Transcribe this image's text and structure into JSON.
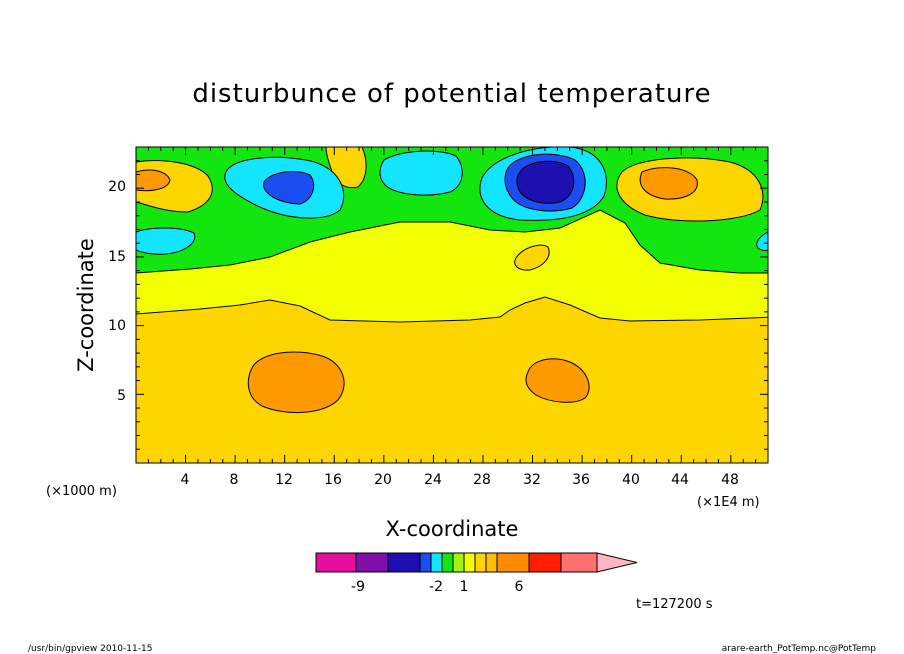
{
  "chart_data": {
    "type": "heatmap",
    "title": "disturbunce of potential temperature",
    "xlabel": "X-coordinate",
    "ylabel": "Z-coordinate",
    "x_unit_left": "(×1000 m)",
    "x_unit_right": "(×1E4 m)",
    "x_ticks": [
      "4",
      "8",
      "12",
      "16",
      "20",
      "24",
      "28",
      "32",
      "36",
      "40",
      "44",
      "48"
    ],
    "y_ticks": [
      "5",
      "10",
      "15",
      "20"
    ],
    "xlim": [
      0,
      51
    ],
    "ylim": [
      0,
      23
    ],
    "colorbar": {
      "labels": [
        "-9",
        "-2",
        "1",
        "6"
      ],
      "colors": [
        "#e60f9b",
        "#7e0fa8",
        "#1d0fb0",
        "#1b4ef0",
        "#14e5ff",
        "#13e60e",
        "#a5f30c",
        "#f1ff00",
        "#ffd500",
        "#ffbf00",
        "#ff8c00",
        "#ff1e00",
        "#ff7070",
        "#ffb6c0"
      ]
    },
    "regions": [
      {
        "level": "1 to 2",
        "color": "#ffd500",
        "description": "lower layer z < 11"
      },
      {
        "level": "0 to 1",
        "color": "#f1ff00",
        "description": "band z 11-16"
      },
      {
        "level": "-1 to 0",
        "color": "#13e60e",
        "description": "upper layer z 16-23"
      },
      {
        "level": "2 to 3",
        "color": "#ff9900",
        "description": "warm cells near z=6 at x=12 and x=34"
      },
      {
        "level": "-2 to -1",
        "color": "#14e5ff",
        "description": "cool cells near z=20"
      },
      {
        "level": "below -3",
        "color": "#1d0fb0",
        "description": "strongest cool cell at x=34, z=20"
      }
    ]
  },
  "footer": {
    "timestamp": "t=127200 s",
    "program": "/usr/bin/gpview 2010-11-15",
    "source": "arare-earth_PotTemp.nc@PotTemp"
  }
}
